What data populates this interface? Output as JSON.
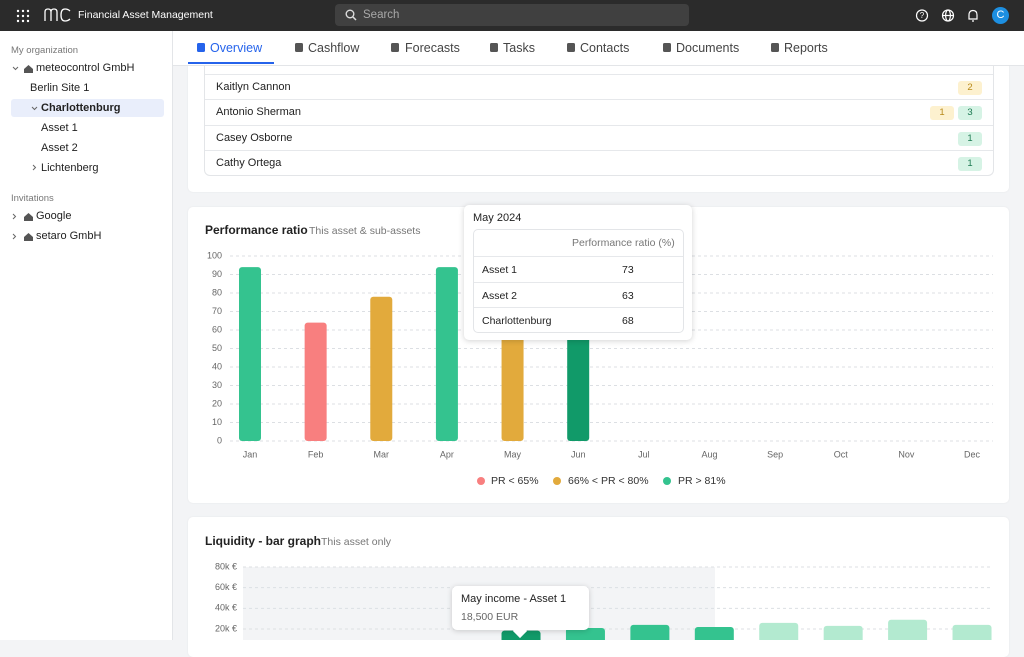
{
  "header": {
    "app_title": "Financial Asset Management",
    "search_placeholder": "Search",
    "avatar": "C"
  },
  "sidebar": {
    "org_label": "My organization",
    "org_tree": [
      "meteocontrol GmbH",
      "Berlin Site 1",
      "Charlottenburg",
      "Asset 1",
      "Asset 2",
      "Lichtenberg"
    ],
    "invitations_label": "Invitations",
    "invitations": [
      "Google",
      "setaro GmbH"
    ]
  },
  "tabs": [
    "Overview",
    "Cashflow",
    "Forecasts",
    "Tasks",
    "Contacts",
    "Documents",
    "Reports"
  ],
  "contacts": {
    "rows": [
      {
        "name": "Kaitlyn Cannon",
        "badges": [
          {
            "value": 2,
            "color": "#b8891a",
            "background": "#fdf1cf"
          }
        ]
      },
      {
        "name": "Antonio Sherman",
        "badges": [
          {
            "value": 1,
            "color": "#b8891a",
            "background": "#fdf1cf"
          },
          {
            "value": 3,
            "color": "#1d7a52",
            "background": "#d6f3e5"
          }
        ]
      },
      {
        "name": "Casey Osborne",
        "badges": [
          {
            "value": 1,
            "color": "#1d7a52",
            "background": "#d6f3e5"
          }
        ]
      },
      {
        "name": "Cathy Ortega",
        "badges": [
          {
            "value": 1,
            "color": "#1d7a52",
            "background": "#d6f3e5"
          }
        ]
      }
    ]
  },
  "chart_data": [
    {
      "type": "bar",
      "title": "Performance ratio",
      "subtitle": "This asset & sub-assets",
      "categories": [
        "Jan",
        "Feb",
        "Mar",
        "Apr",
        "May",
        "Jun",
        "Jul",
        "Aug",
        "Sep",
        "Oct",
        "Nov",
        "Dec"
      ],
      "values": [
        94,
        64,
        78,
        94,
        68,
        88,
        null,
        null,
        null,
        null,
        null,
        null
      ],
      "colors": [
        "#34c38f",
        "#f87f7f",
        "#e2aa3c",
        "#34c38f",
        "#e2aa3c",
        "#119a69",
        null,
        null,
        null,
        null,
        null,
        null
      ],
      "ylim": [
        0,
        100
      ],
      "yticks": [
        0,
        10,
        20,
        30,
        40,
        50,
        60,
        70,
        80,
        90,
        100
      ],
      "grid": true,
      "legend": [
        {
          "name": "PR < 65%",
          "color": "#f87f7f"
        },
        {
          "name": "66% < PR < 80%",
          "color": "#e2aa3c"
        },
        {
          "name": "PR > 81%",
          "color": "#34c38f"
        }
      ],
      "tooltip": {
        "title": "May 2024",
        "column": "Performance ratio (%)",
        "rows": [
          {
            "name": "Asset 1",
            "value": 73
          },
          {
            "name": "Asset 2",
            "value": 63
          },
          {
            "name": "Charlottenburg",
            "value": 68
          }
        ]
      }
    },
    {
      "type": "bar",
      "title": "Liquidity - bar graph",
      "subtitle": "This asset only",
      "categories": [
        null,
        null,
        null,
        null,
        null,
        null,
        null,
        null,
        null,
        null,
        null,
        null
      ],
      "values": [
        null,
        null,
        null,
        null,
        18500,
        21000,
        24000,
        22000,
        26000,
        23000,
        29000,
        24000
      ],
      "colors": [
        null,
        null,
        null,
        null,
        "#119a69",
        "#34c38f",
        "#34c38f",
        "#34c38f",
        "#b3ead0",
        "#b3ead0",
        "#b3ead0",
        "#b3ead0"
      ],
      "ylim": [
        0,
        88000
      ],
      "yticks": [
        {
          "value": 20000,
          "label": "20k €"
        },
        {
          "value": 40000,
          "label": "40k €"
        },
        {
          "value": 60000,
          "label": "60k €"
        },
        {
          "value": 80000,
          "label": "80k €"
        }
      ],
      "grid": true,
      "tooltip": {
        "title": "May income - Asset 1",
        "value": 18500,
        "value_label": "18,500 EUR"
      }
    }
  ]
}
